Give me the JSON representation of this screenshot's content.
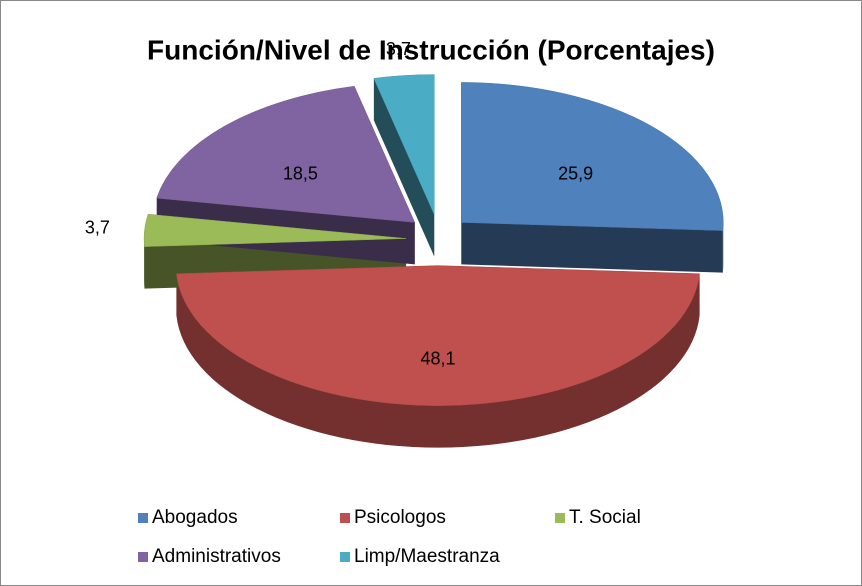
{
  "chart_data": {
    "type": "pie3d",
    "title": "Función/Nivel de Instrucción (Porcentajes)",
    "categories": [
      "Abogados",
      "Psicologos",
      "T. Social",
      "Administrativos",
      "Limp/Maestranza"
    ],
    "values": [
      25.9,
      48.1,
      3.7,
      18.5,
      3.7
    ],
    "value_labels": [
      "25,9",
      "48,1",
      "3,7",
      "18,5",
      "3,7"
    ],
    "colors": [
      "#4f81bd",
      "#c0504d",
      "#9bbb59",
      "#8064a2",
      "#4bacc6"
    ],
    "legend": "bottom"
  }
}
